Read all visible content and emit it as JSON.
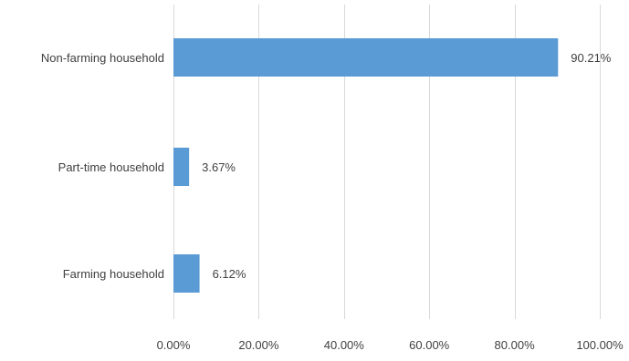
{
  "chart_data": {
    "type": "bar",
    "orientation": "horizontal",
    "categories": [
      "Non-farming household",
      "Part-time household",
      "Farming household"
    ],
    "values": [
      90.21,
      3.67,
      6.12
    ],
    "data_labels": [
      "90.21%",
      "3.67%",
      "6.12%"
    ],
    "xlim": [
      0,
      100
    ],
    "x_ticks": [
      0,
      20,
      40,
      60,
      80,
      100
    ],
    "x_tick_labels": [
      "0.00%",
      "20.00%",
      "40.00%",
      "60.00%",
      "80.00%",
      "100.00%"
    ],
    "grid": true,
    "legend": "none",
    "bar_color": "#5B9BD5",
    "text_color": "#404040",
    "grid_color": "#D9D9D9"
  }
}
